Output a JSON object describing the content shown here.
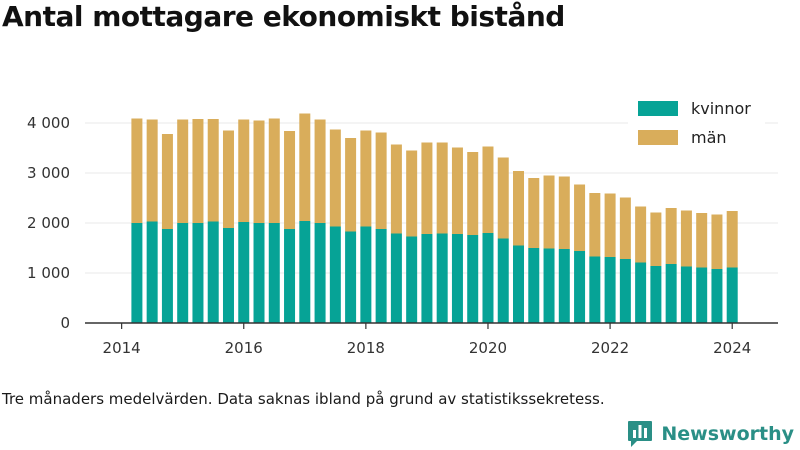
{
  "title": "Antal mottagare ekonomiskt bistånd",
  "note": "Tre månaders medelvärden. Data saknas ibland på grund av statistikssekretess.",
  "brand": "Newsworthy",
  "colors": {
    "kvinnor": "#06a396",
    "man": "#d9ad5b",
    "axis": "#333333",
    "brand": "#2a8f86"
  },
  "icons": {
    "brand_logo": "chat-bubble-bar-chart-icon"
  },
  "chart_data": {
    "type": "bar",
    "stacked": true,
    "x_ticks": [
      "2014",
      "2016",
      "2018",
      "2020",
      "2022",
      "2024"
    ],
    "y_ticks": [
      "0",
      "1 000",
      "2 000",
      "3 000",
      "4 000"
    ],
    "ylim": [
      0,
      4400
    ],
    "xlim": [
      2013.4,
      2024.75
    ],
    "legend_position": "top-right",
    "x": [
      2014.25,
      2014.5,
      2014.75,
      2015.0,
      2015.25,
      2015.5,
      2015.75,
      2016.0,
      2016.25,
      2016.5,
      2016.75,
      2017.0,
      2017.25,
      2017.5,
      2017.75,
      2018.0,
      2018.25,
      2018.5,
      2018.75,
      2019.0,
      2019.25,
      2019.5,
      2019.75,
      2020.0,
      2020.25,
      2020.5,
      2020.75,
      2021.0,
      2021.25,
      2021.5,
      2021.75,
      2022.0,
      2022.25,
      2022.5,
      2022.75,
      2023.0,
      2023.25,
      2023.5,
      2023.75,
      2024.0
    ],
    "series": [
      {
        "name": "kvinnor",
        "values": [
          2000,
          2030,
          1880,
          2000,
          2000,
          2030,
          1900,
          2020,
          2000,
          2000,
          1880,
          2040,
          2000,
          1930,
          1830,
          1930,
          1880,
          1790,
          1730,
          1780,
          1790,
          1780,
          1760,
          1800,
          1690,
          1550,
          1500,
          1490,
          1480,
          1440,
          1330,
          1320,
          1280,
          1210,
          1140,
          1180,
          1130,
          1110,
          1080,
          1110
        ]
      },
      {
        "name": "män",
        "values": [
          2090,
          2040,
          1900,
          2070,
          2080,
          2050,
          1950,
          2050,
          2050,
          2090,
          1960,
          2150,
          2070,
          1940,
          1870,
          1920,
          1930,
          1780,
          1720,
          1830,
          1820,
          1730,
          1660,
          1730,
          1620,
          1490,
          1400,
          1460,
          1450,
          1330,
          1270,
          1270,
          1230,
          1120,
          1070,
          1120,
          1120,
          1090,
          1090,
          1130
        ]
      }
    ]
  }
}
